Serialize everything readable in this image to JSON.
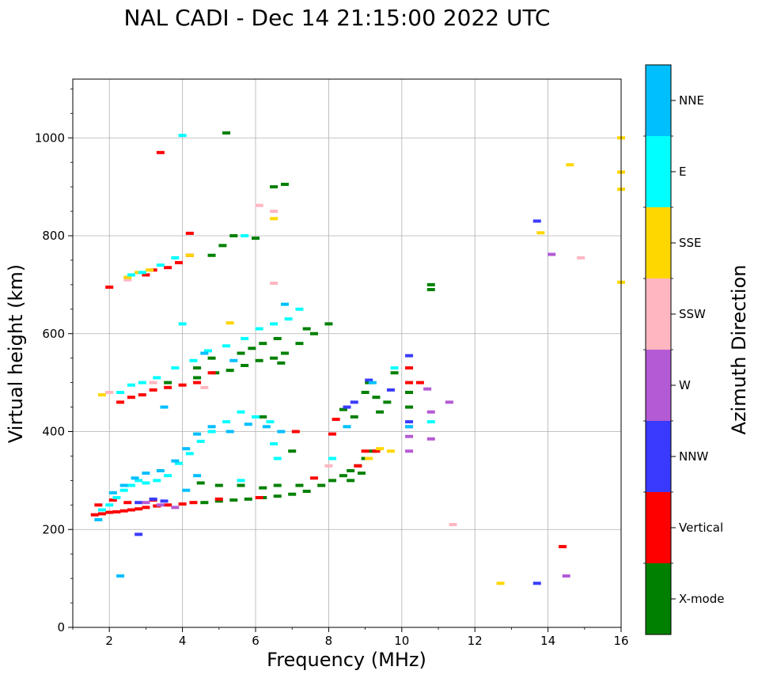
{
  "chart_data": {
    "type": "scatter",
    "title": "NAL CADI - Dec 14 21:15:00 2022 UTC",
    "xlabel": "Frequency (MHz)",
    "ylabel": "Virtual height (km)",
    "xlim": [
      1,
      16
    ],
    "ylim": [
      0,
      1120
    ],
    "xticks": [
      "2",
      "4",
      "6",
      "8",
      "10",
      "12",
      "14",
      "16"
    ],
    "yticks": [
      "0",
      "200",
      "400",
      "600",
      "800",
      "1000"
    ],
    "grid": true,
    "colorbar": {
      "label": "Azimuth Direction",
      "categories": [
        "X-mode",
        "Vertical",
        "NNW",
        "W",
        "SSW",
        "SSE",
        "E",
        "NNE"
      ],
      "colors": [
        "#008000",
        "#ff0000",
        "#3a3aff",
        "#b45ad4",
        "#ffb6c1",
        "#ffd700",
        "#00ffff",
        "#00bfff"
      ]
    },
    "series": [
      {
        "name": "X-mode",
        "points": [
          [
            4.6,
            255
          ],
          [
            5.0,
            258
          ],
          [
            5.4,
            260
          ],
          [
            5.8,
            262
          ],
          [
            6.2,
            265
          ],
          [
            6.6,
            268
          ],
          [
            7.0,
            272
          ],
          [
            7.4,
            278
          ],
          [
            7.8,
            290
          ],
          [
            8.1,
            300
          ],
          [
            8.4,
            310
          ],
          [
            8.6,
            320
          ],
          [
            8.8,
            330
          ],
          [
            9.0,
            345
          ],
          [
            9.2,
            360
          ],
          [
            8.6,
            300
          ],
          [
            8.9,
            315
          ],
          [
            9.4,
            440
          ],
          [
            9.6,
            460
          ],
          [
            9.8,
            520
          ],
          [
            10.2,
            450
          ],
          [
            10.2,
            480
          ],
          [
            9.1,
            500
          ],
          [
            4.5,
            295
          ],
          [
            5.0,
            290
          ],
          [
            5.6,
            290
          ],
          [
            6.2,
            285
          ],
          [
            6.6,
            290
          ],
          [
            7.2,
            290
          ],
          [
            3.6,
            500
          ],
          [
            4.4,
            510
          ],
          [
            4.9,
            520
          ],
          [
            5.3,
            525
          ],
          [
            5.7,
            535
          ],
          [
            6.1,
            545
          ],
          [
            6.5,
            550
          ],
          [
            6.8,
            560
          ],
          [
            7.2,
            580
          ],
          [
            7.6,
            600
          ],
          [
            8.0,
            620
          ],
          [
            6.2,
            580
          ],
          [
            6.6,
            590
          ],
          [
            4.8,
            760
          ],
          [
            5.1,
            780
          ],
          [
            5.4,
            800
          ],
          [
            6.0,
            795
          ],
          [
            6.5,
            900
          ],
          [
            6.8,
            905
          ],
          [
            10.8,
            690
          ],
          [
            10.8,
            700
          ],
          [
            9.0,
            480
          ],
          [
            9.3,
            470
          ],
          [
            7.0,
            360
          ],
          [
            6.2,
            430
          ],
          [
            8.4,
            445
          ],
          [
            8.7,
            430
          ],
          [
            4.4,
            530
          ],
          [
            4.8,
            550
          ],
          [
            5.6,
            560
          ],
          [
            5.9,
            570
          ],
          [
            6.7,
            540
          ],
          [
            7.4,
            610
          ],
          [
            5.2,
            1010
          ]
        ]
      },
      {
        "name": "Vertical",
        "points": [
          [
            1.6,
            230
          ],
          [
            1.8,
            232
          ],
          [
            2.0,
            235
          ],
          [
            2.2,
            236
          ],
          [
            2.4,
            238
          ],
          [
            2.6,
            240
          ],
          [
            2.8,
            242
          ],
          [
            3.0,
            245
          ],
          [
            3.3,
            248
          ],
          [
            3.6,
            250
          ],
          [
            4.0,
            252
          ],
          [
            4.3,
            255
          ],
          [
            5.0,
            262
          ],
          [
            6.1,
            265
          ],
          [
            8.2,
            425
          ],
          [
            8.1,
            395
          ],
          [
            9.0,
            360
          ],
          [
            10.2,
            530
          ],
          [
            10.2,
            500
          ],
          [
            10.5,
            500
          ],
          [
            14.4,
            165
          ],
          [
            7.6,
            305
          ],
          [
            7.1,
            400
          ],
          [
            2.3,
            460
          ],
          [
            2.6,
            470
          ],
          [
            2.9,
            475
          ],
          [
            3.2,
            485
          ],
          [
            3.6,
            490
          ],
          [
            4.0,
            495
          ],
          [
            4.4,
            500
          ],
          [
            4.8,
            520
          ],
          [
            3.0,
            720
          ],
          [
            3.2,
            730
          ],
          [
            3.6,
            735
          ],
          [
            3.9,
            745
          ],
          [
            4.2,
            760
          ],
          [
            2.0,
            695
          ],
          [
            3.4,
            970
          ],
          [
            4.2,
            805
          ],
          [
            1.7,
            250
          ],
          [
            2.1,
            260
          ],
          [
            2.5,
            255
          ],
          [
            3.2,
            260
          ],
          [
            8.8,
            330
          ],
          [
            9.3,
            360
          ]
        ]
      },
      {
        "name": "NNW",
        "points": [
          [
            8.7,
            460
          ],
          [
            8.5,
            450
          ],
          [
            9.1,
            505
          ],
          [
            10.2,
            555
          ],
          [
            13.7,
            830
          ],
          [
            13.7,
            90
          ],
          [
            2.8,
            255
          ],
          [
            3.2,
            262
          ],
          [
            3.5,
            258
          ],
          [
            9.7,
            485
          ],
          [
            10.2,
            420
          ],
          [
            2.8,
            190
          ]
        ]
      },
      {
        "name": "W",
        "points": [
          [
            10.2,
            390
          ],
          [
            10.2,
            410
          ],
          [
            10.2,
            360
          ],
          [
            10.8,
            440
          ],
          [
            10.8,
            385
          ],
          [
            11.3,
            460
          ],
          [
            14.1,
            762
          ],
          [
            14.5,
            105
          ],
          [
            10.7,
            487
          ],
          [
            3.0,
            255
          ],
          [
            3.4,
            250
          ],
          [
            3.8,
            245
          ]
        ]
      },
      {
        "name": "SSW",
        "points": [
          [
            11.4,
            210
          ],
          [
            14.9,
            755
          ],
          [
            6.5,
            850
          ],
          [
            6.1,
            862
          ],
          [
            8.0,
            330
          ],
          [
            2.5,
            710
          ],
          [
            2.0,
            480
          ],
          [
            3.2,
            500
          ],
          [
            4.6,
            490
          ],
          [
            6.5,
            703
          ]
        ]
      },
      {
        "name": "SSE",
        "points": [
          [
            13.8,
            806
          ],
          [
            14.6,
            945
          ],
          [
            12.7,
            90
          ],
          [
            16.0,
            1000
          ],
          [
            16.0,
            930
          ],
          [
            16.0,
            895
          ],
          [
            16.0,
            705
          ],
          [
            9.7,
            360
          ],
          [
            9.4,
            365
          ],
          [
            9.1,
            345
          ],
          [
            2.5,
            715
          ],
          [
            2.8,
            725
          ],
          [
            3.1,
            730
          ],
          [
            4.2,
            760
          ],
          [
            6.5,
            835
          ],
          [
            1.8,
            475
          ],
          [
            5.3,
            622
          ]
        ]
      },
      {
        "name": "E",
        "points": [
          [
            1.8,
            240
          ],
          [
            2.0,
            250
          ],
          [
            2.2,
            265
          ],
          [
            2.4,
            280
          ],
          [
            2.6,
            290
          ],
          [
            2.8,
            300
          ],
          [
            3.0,
            295
          ],
          [
            3.3,
            300
          ],
          [
            3.6,
            310
          ],
          [
            3.9,
            335
          ],
          [
            4.2,
            355
          ],
          [
            4.5,
            380
          ],
          [
            4.8,
            400
          ],
          [
            5.2,
            420
          ],
          [
            5.6,
            440
          ],
          [
            6.0,
            430
          ],
          [
            6.4,
            420
          ],
          [
            2.3,
            480
          ],
          [
            2.6,
            495
          ],
          [
            2.9,
            500
          ],
          [
            3.3,
            510
          ],
          [
            3.8,
            530
          ],
          [
            4.3,
            545
          ],
          [
            4.7,
            565
          ],
          [
            5.2,
            575
          ],
          [
            5.7,
            590
          ],
          [
            6.1,
            610
          ],
          [
            6.5,
            620
          ],
          [
            6.9,
            630
          ],
          [
            7.2,
            650
          ],
          [
            2.6,
            720
          ],
          [
            2.9,
            725
          ],
          [
            3.4,
            740
          ],
          [
            3.8,
            755
          ],
          [
            4.0,
            1005
          ],
          [
            5.6,
            300
          ],
          [
            6.6,
            345
          ],
          [
            6.5,
            375
          ],
          [
            8.1,
            345
          ],
          [
            9.8,
            530
          ],
          [
            10.8,
            420
          ],
          [
            4.0,
            620
          ],
          [
            5.7,
            800
          ]
        ]
      },
      {
        "name": "NNE",
        "points": [
          [
            2.1,
            275
          ],
          [
            2.4,
            290
          ],
          [
            2.7,
            305
          ],
          [
            3.0,
            315
          ],
          [
            3.4,
            320
          ],
          [
            3.8,
            340
          ],
          [
            4.1,
            365
          ],
          [
            4.4,
            395
          ],
          [
            4.8,
            410
          ],
          [
            5.3,
            400
          ],
          [
            5.8,
            415
          ],
          [
            6.3,
            410
          ],
          [
            6.7,
            400
          ],
          [
            9.2,
            500
          ],
          [
            10.2,
            410
          ],
          [
            6.8,
            660
          ],
          [
            3.5,
            450
          ],
          [
            4.6,
            560
          ],
          [
            5.4,
            545
          ],
          [
            4.1,
            280
          ],
          [
            4.4,
            310
          ],
          [
            8.5,
            410
          ],
          [
            2.3,
            105
          ],
          [
            1.7,
            220
          ]
        ]
      }
    ]
  }
}
